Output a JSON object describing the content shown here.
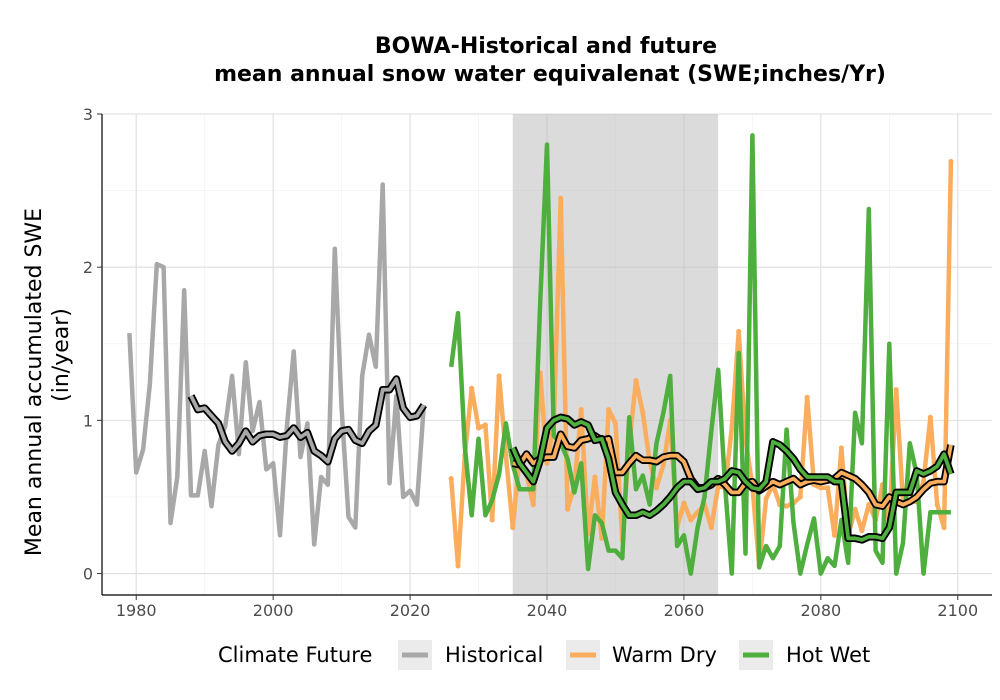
{
  "chart_data": {
    "type": "line",
    "title_line1": "BOWA-Historical and future",
    "title_line2": "mean annual snow water equivalenat (SWE;inches/Yr)",
    "ylabel_line1": "Mean annual accumulated SWE",
    "ylabel_line2": "(in/year)",
    "xlabel": "",
    "xlim": [
      1975,
      2105
    ],
    "ylim": [
      -0.14,
      3.0
    ],
    "x_ticks": [
      1980,
      2000,
      2020,
      2040,
      2060,
      2080,
      2100
    ],
    "y_ticks": [
      0,
      1,
      2,
      3
    ],
    "grid": true,
    "shaded_period": [
      2035,
      2065
    ],
    "legend": {
      "title": "Climate Future",
      "position": "bottom",
      "entries": [
        "Historical",
        "Warm Dry",
        "Hot Wet"
      ]
    },
    "series": [
      {
        "name": "Historical",
        "color": "#a8a8a8",
        "x": [
          1979,
          1980,
          1981,
          1982,
          1983,
          1984,
          1985,
          1986,
          1987,
          1988,
          1989,
          1990,
          1991,
          1992,
          1993,
          1994,
          1995,
          1996,
          1997,
          1998,
          1999,
          2000,
          2001,
          2002,
          2003,
          2004,
          2005,
          2006,
          2007,
          2008,
          2009,
          2010,
          2011,
          2012,
          2013,
          2014,
          2015,
          2016,
          2017,
          2018,
          2019,
          2020,
          2021,
          2022
        ],
        "y": [
          1.57,
          0.66,
          0.81,
          1.24,
          2.02,
          2.0,
          0.33,
          0.63,
          1.85,
          0.51,
          0.51,
          0.8,
          0.44,
          0.84,
          0.96,
          1.29,
          0.78,
          1.38,
          0.93,
          1.12,
          0.68,
          0.72,
          0.25,
          0.95,
          1.45,
          0.76,
          0.98,
          0.19,
          0.63,
          0.58,
          2.12,
          1.08,
          0.37,
          0.3,
          1.29,
          1.56,
          1.35,
          2.54,
          0.59,
          1.16,
          0.5,
          0.54,
          0.45,
          1.1
        ],
        "rolling": {
          "x": [
            1988,
            1989,
            1990,
            1991,
            1992,
            1993,
            1994,
            1995,
            1996,
            1997,
            1998,
            1999,
            2000,
            2001,
            2002,
            2003,
            2004,
            2005,
            2006,
            2007,
            2008,
            2009,
            2010,
            2011,
            2012,
            2013,
            2014,
            2015,
            2016,
            2017,
            2018,
            2019,
            2020,
            2021,
            2022
          ],
          "y": [
            1.16,
            1.07,
            1.08,
            1.03,
            0.98,
            0.86,
            0.8,
            0.85,
            0.93,
            0.86,
            0.9,
            0.91,
            0.91,
            0.89,
            0.9,
            0.95,
            0.89,
            0.92,
            0.8,
            0.77,
            0.73,
            0.88,
            0.93,
            0.94,
            0.87,
            0.85,
            0.93,
            0.97,
            1.2,
            1.2,
            1.27,
            1.08,
            1.02,
            1.03,
            1.1
          ]
        }
      },
      {
        "name": "Warm Dry",
        "color": "#fbad5e",
        "x": [
          2026,
          2027,
          2028,
          2029,
          2030,
          2031,
          2032,
          2033,
          2034,
          2035,
          2036,
          2037,
          2038,
          2039,
          2040,
          2041,
          2042,
          2043,
          2044,
          2045,
          2046,
          2047,
          2048,
          2049,
          2050,
          2051,
          2052,
          2053,
          2054,
          2055,
          2056,
          2057,
          2058,
          2059,
          2060,
          2061,
          2062,
          2063,
          2064,
          2065,
          2066,
          2067,
          2068,
          2069,
          2070,
          2071,
          2072,
          2073,
          2074,
          2075,
          2076,
          2077,
          2078,
          2079,
          2080,
          2081,
          2082,
          2083,
          2084,
          2085,
          2086,
          2087,
          2088,
          2089,
          2090,
          2091,
          2092,
          2093,
          2094,
          2095,
          2096,
          2097,
          2098,
          2099
        ],
        "y": [
          0.62,
          0.05,
          0.77,
          1.21,
          0.95,
          0.97,
          0.35,
          1.29,
          0.77,
          0.3,
          0.76,
          0.65,
          0.45,
          1.31,
          0.72,
          0.97,
          2.45,
          0.42,
          0.57,
          1.07,
          0.26,
          0.63,
          0.23,
          1.07,
          0.98,
          0.22,
          0.84,
          1.26,
          1.05,
          0.73,
          0.56,
          0.71,
          1.0,
          0.3,
          0.46,
          0.35,
          0.4,
          0.45,
          0.3,
          0.57,
          0.56,
          0.95,
          1.58,
          0.88,
          0.57,
          0.05,
          0.49,
          0.58,
          0.45,
          0.44,
          0.46,
          0.5,
          1.15,
          0.58,
          0.56,
          0.56,
          0.25,
          0.82,
          0.25,
          0.42,
          0.28,
          0.45,
          0.35,
          0.58,
          0.32,
          1.2,
          0.47,
          0.47,
          0.47,
          0.6,
          1.02,
          0.45,
          0.3,
          2.69
        ],
        "rolling": {
          "x": [
            2035,
            2036,
            2037,
            2038,
            2039,
            2040,
            2041,
            2042,
            2043,
            2044,
            2045,
            2046,
            2047,
            2048,
            2049,
            2050,
            2051,
            2052,
            2053,
            2054,
            2055,
            2056,
            2057,
            2058,
            2059,
            2060,
            2061,
            2062,
            2063,
            2064,
            2065,
            2066,
            2067,
            2068,
            2069,
            2070,
            2071,
            2072,
            2073,
            2074,
            2075,
            2076,
            2077,
            2078,
            2079,
            2080,
            2081,
            2082,
            2083,
            2084,
            2085,
            2086,
            2087,
            2088,
            2089,
            2090,
            2091,
            2092,
            2093,
            2094,
            2095,
            2096,
            2097,
            2098,
            2099
          ],
          "y": [
            0.72,
            0.71,
            0.78,
            0.72,
            0.75,
            0.76,
            0.76,
            0.91,
            0.83,
            0.82,
            0.87,
            0.88,
            0.9,
            0.87,
            0.88,
            0.66,
            0.66,
            0.72,
            0.77,
            0.74,
            0.74,
            0.73,
            0.76,
            0.77,
            0.77,
            0.73,
            0.62,
            0.56,
            0.56,
            0.58,
            0.62,
            0.58,
            0.53,
            0.53,
            0.59,
            0.6,
            0.54,
            0.57,
            0.6,
            0.58,
            0.6,
            0.62,
            0.58,
            0.6,
            0.61,
            0.6,
            0.61,
            0.62,
            0.66,
            0.64,
            0.62,
            0.58,
            0.53,
            0.45,
            0.44,
            0.5,
            0.47,
            0.45,
            0.47,
            0.5,
            0.55,
            0.59,
            0.6,
            0.6,
            0.84
          ]
        }
      },
      {
        "name": "Hot Wet",
        "color": "#4eae3e",
        "x": [
          2026,
          2027,
          2028,
          2029,
          2030,
          2031,
          2032,
          2033,
          2034,
          2035,
          2036,
          2037,
          2038,
          2039,
          2040,
          2041,
          2042,
          2043,
          2044,
          2045,
          2046,
          2047,
          2048,
          2049,
          2050,
          2051,
          2052,
          2053,
          2054,
          2055,
          2056,
          2057,
          2058,
          2059,
          2060,
          2061,
          2062,
          2063,
          2064,
          2065,
          2066,
          2067,
          2068,
          2069,
          2070,
          2071,
          2072,
          2073,
          2074,
          2075,
          2076,
          2077,
          2078,
          2079,
          2080,
          2081,
          2082,
          2083,
          2084,
          2085,
          2086,
          2087,
          2088,
          2089,
          2090,
          2091,
          2092,
          2093,
          2094,
          2095,
          2096,
          2097,
          2098,
          2099
        ],
        "y": [
          1.35,
          1.7,
          0.83,
          0.38,
          0.88,
          0.38,
          0.48,
          0.65,
          0.98,
          0.71,
          0.55,
          0.55,
          0.55,
          1.77,
          2.8,
          0.9,
          0.85,
          0.75,
          0.53,
          0.72,
          0.03,
          0.38,
          0.33,
          0.15,
          0.15,
          0.1,
          1.02,
          0.55,
          0.64,
          0.45,
          0.85,
          1.05,
          1.29,
          0.18,
          0.25,
          0.0,
          0.3,
          0.5,
          0.93,
          1.33,
          0.58,
          0.0,
          1.44,
          0.13,
          2.86,
          0.04,
          0.18,
          0.1,
          0.18,
          0.94,
          0.33,
          0.0,
          0.19,
          0.36,
          0.0,
          0.1,
          0.05,
          0.35,
          0.07,
          1.05,
          0.85,
          2.38,
          0.15,
          0.07,
          1.5,
          0.0,
          0.2,
          0.85,
          0.65,
          0.0,
          0.4,
          0.4,
          0.4,
          0.4
        ],
        "rolling": {
          "x": [
            2035,
            2036,
            2037,
            2038,
            2039,
            2040,
            2041,
            2042,
            2043,
            2044,
            2045,
            2046,
            2047,
            2048,
            2049,
            2050,
            2051,
            2052,
            2053,
            2054,
            2055,
            2056,
            2057,
            2058,
            2059,
            2060,
            2061,
            2062,
            2063,
            2064,
            2065,
            2066,
            2067,
            2068,
            2069,
            2070,
            2071,
            2072,
            2073,
            2074,
            2075,
            2076,
            2077,
            2078,
            2079,
            2080,
            2081,
            2082,
            2083,
            2084,
            2085,
            2086,
            2087,
            2088,
            2089,
            2090,
            2091,
            2092,
            2093,
            2094,
            2095,
            2096,
            2097,
            2098,
            2099
          ],
          "y": [
            0.82,
            0.72,
            0.66,
            0.6,
            0.74,
            0.95,
            1.0,
            1.02,
            1.01,
            0.97,
            0.99,
            0.97,
            0.87,
            0.88,
            0.75,
            0.53,
            0.45,
            0.38,
            0.38,
            0.4,
            0.38,
            0.41,
            0.45,
            0.5,
            0.56,
            0.6,
            0.6,
            0.55,
            0.56,
            0.6,
            0.6,
            0.62,
            0.67,
            0.66,
            0.6,
            0.56,
            0.55,
            0.6,
            0.86,
            0.84,
            0.8,
            0.75,
            0.68,
            0.63,
            0.63,
            0.63,
            0.63,
            0.6,
            0.6,
            0.23,
            0.23,
            0.22,
            0.24,
            0.24,
            0.23,
            0.3,
            0.53,
            0.53,
            0.53,
            0.67,
            0.65,
            0.67,
            0.7,
            0.78,
            0.65
          ]
        }
      }
    ]
  }
}
